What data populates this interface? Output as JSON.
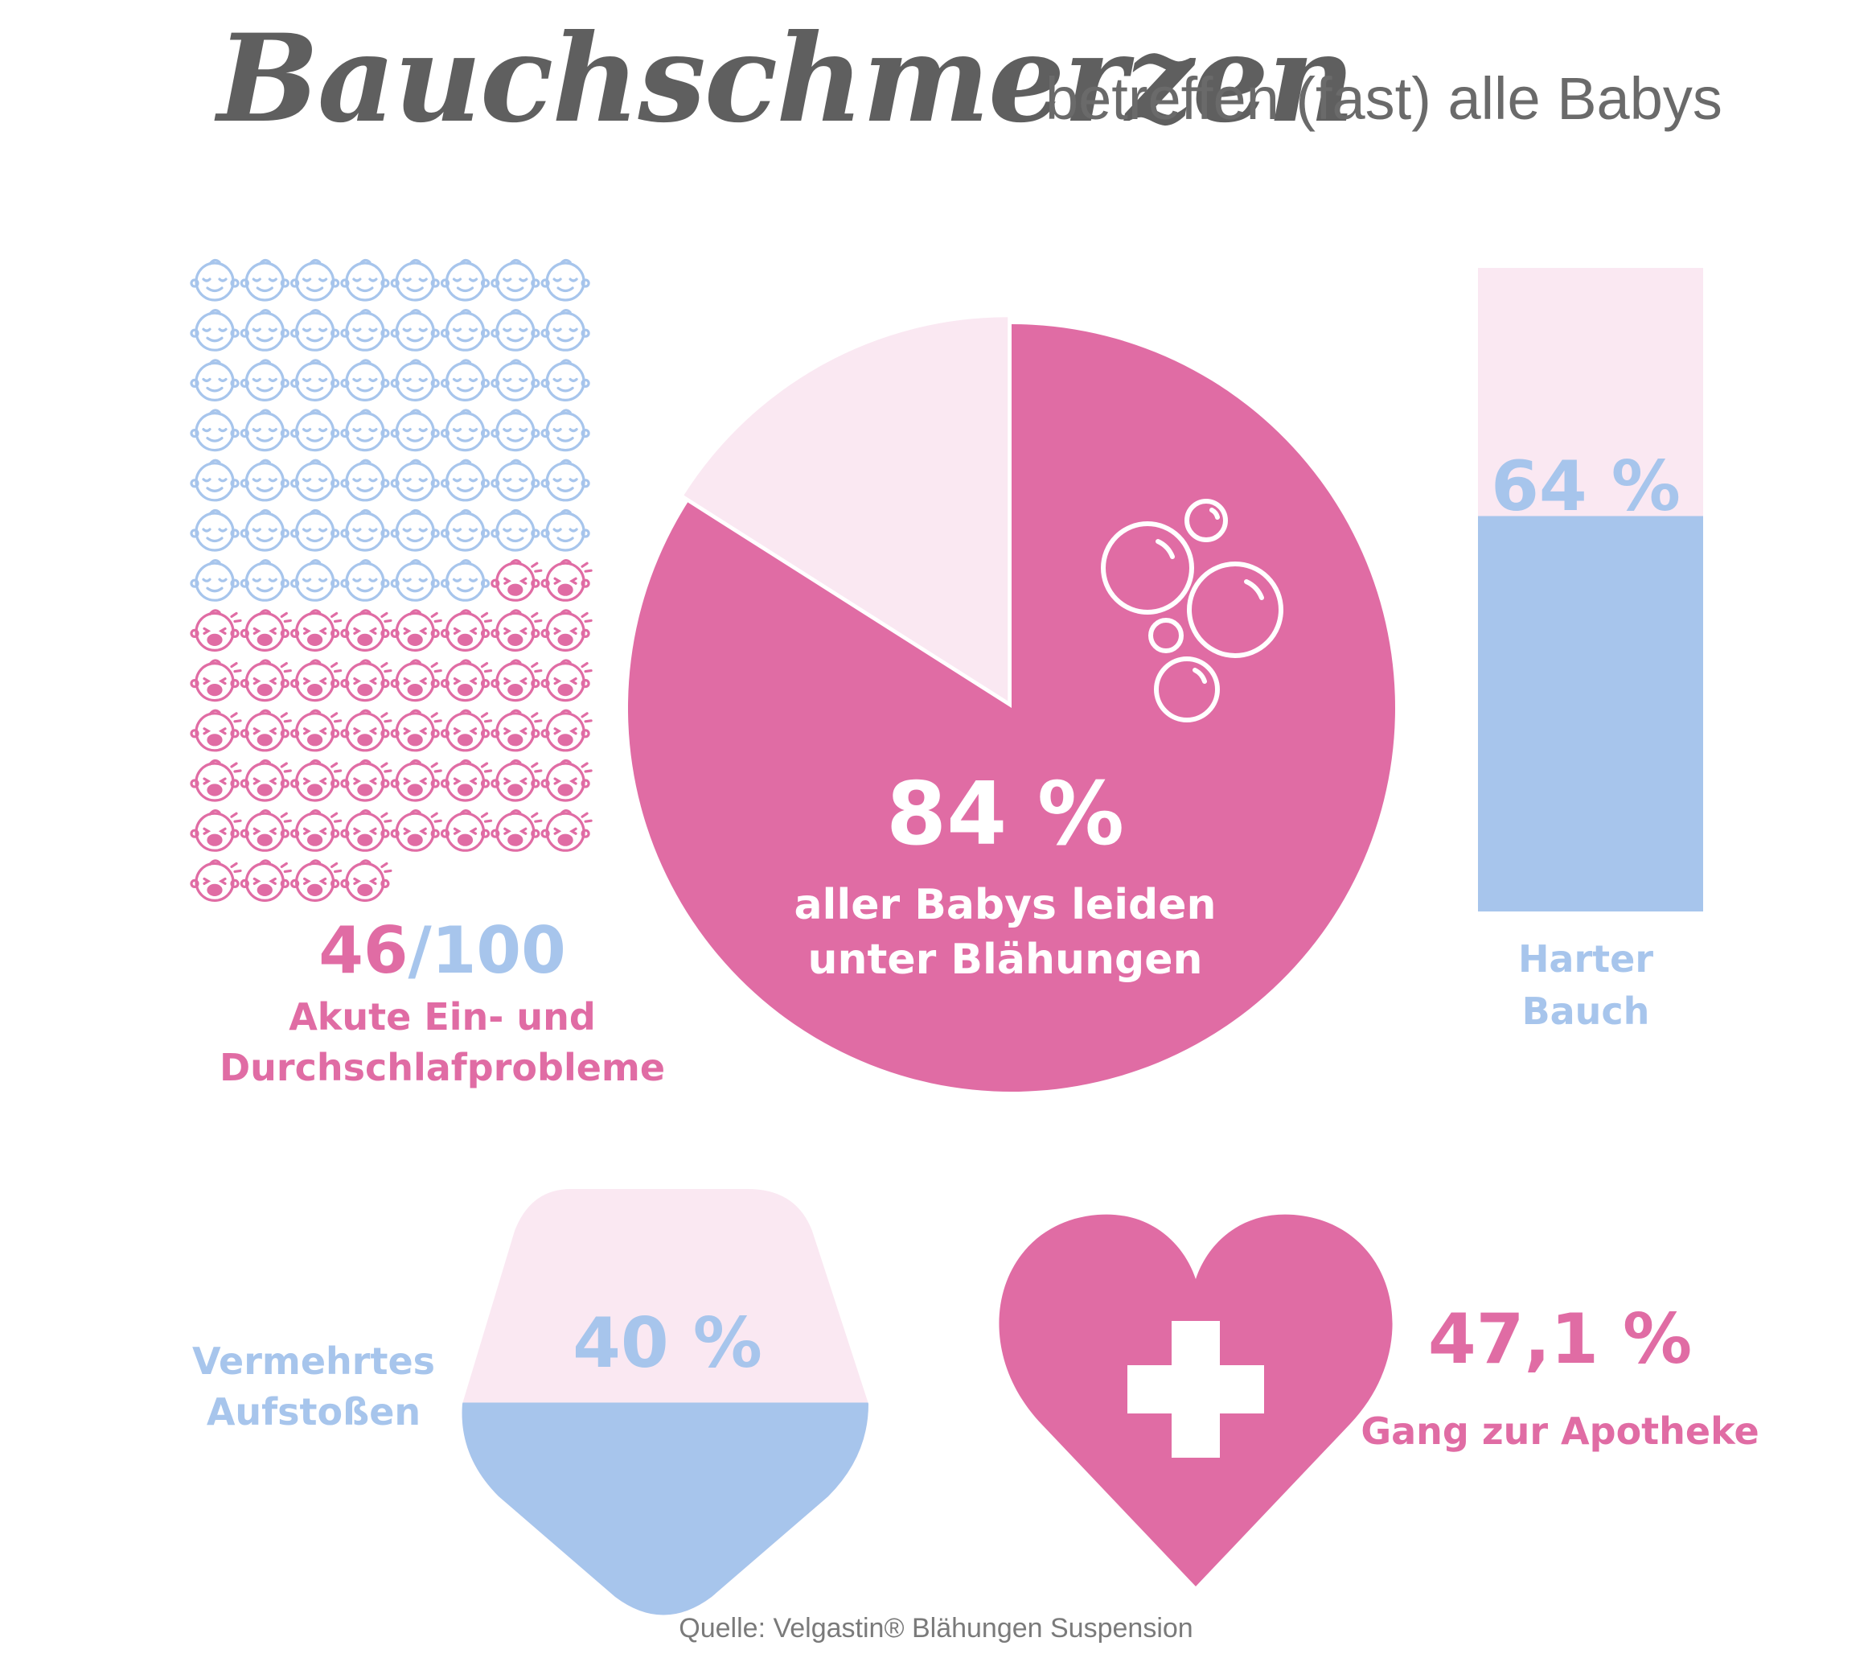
{
  "title": {
    "main": "Bauchschmerzen",
    "rest": "betreffen (fast) alle Babys"
  },
  "colors": {
    "pink": "#e06ca4",
    "light_pink": "#fae8f2",
    "blue": "#a7c5ec",
    "white": "#ffffff"
  },
  "icons": {
    "calm_baby": "calm-baby-icon",
    "crying_baby": "crying-baby-icon",
    "bubbles": "bubbles-icon",
    "cross": "cross-icon"
  },
  "source": "Quelle:  Velgastin® Blähungen Suspension",
  "chart_data": [
    {
      "type": "pictograph",
      "total": 100,
      "value": 46,
      "columns": 8,
      "value_text": "46",
      "total_text": "/100",
      "label_lines": [
        "Akute Ein- und",
        "Durchschlafprobleme"
      ]
    },
    {
      "type": "pie",
      "slices": [
        {
          "name": "leiden unter Blähungen",
          "value": 84
        },
        {
          "name": "Rest",
          "value": 16
        }
      ],
      "value_text": "84 %",
      "label_lines": [
        "aller Babys leiden",
        "unter Blähungen"
      ]
    },
    {
      "type": "bar",
      "value": 64,
      "max": 100,
      "value_text": "64 %",
      "label_lines": [
        "Harter",
        "Bauch"
      ]
    },
    {
      "type": "area",
      "shape": "shield",
      "value": 40,
      "max": 100,
      "value_text": "40 %",
      "label_lines": [
        "Vermehrtes",
        "Aufstoßen"
      ]
    },
    {
      "type": "icon-stat",
      "shape": "heart",
      "value": 47.1,
      "value_text": "47,1 %",
      "label": "Gang zur Apotheke"
    }
  ]
}
